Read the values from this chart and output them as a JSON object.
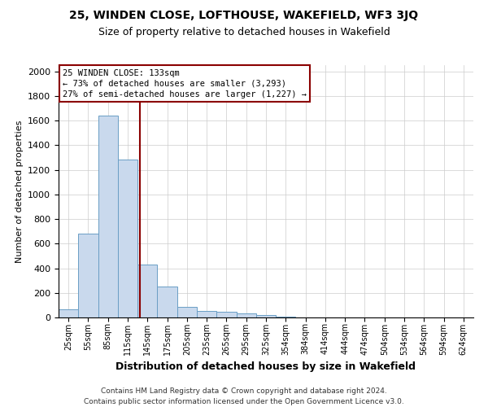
{
  "title1": "25, WINDEN CLOSE, LOFTHOUSE, WAKEFIELD, WF3 3JQ",
  "title2": "Size of property relative to detached houses in Wakefield",
  "xlabel": "Distribution of detached houses by size in Wakefield",
  "ylabel": "Number of detached properties",
  "bar_labels": [
    "25sqm",
    "55sqm",
    "85sqm",
    "115sqm",
    "145sqm",
    "175sqm",
    "205sqm",
    "235sqm",
    "265sqm",
    "295sqm",
    "325sqm",
    "354sqm",
    "384sqm",
    "414sqm",
    "444sqm",
    "474sqm",
    "504sqm",
    "534sqm",
    "564sqm",
    "594sqm",
    "624sqm"
  ],
  "bar_values": [
    65,
    680,
    1640,
    1280,
    430,
    250,
    85,
    55,
    45,
    30,
    20,
    5,
    2,
    1,
    0,
    0,
    0,
    0,
    0,
    0,
    0
  ],
  "bar_color": "#c9d9ed",
  "bar_edge_color": "#6a9ec5",
  "ylim": [
    0,
    2050
  ],
  "yticks": [
    0,
    200,
    400,
    600,
    800,
    1000,
    1200,
    1400,
    1600,
    1800,
    2000
  ],
  "red_line_x": 3.6,
  "annotation_text": "25 WINDEN CLOSE: 133sqm\n← 73% of detached houses are smaller (3,293)\n27% of semi-detached houses are larger (1,227) →",
  "footer1": "Contains HM Land Registry data © Crown copyright and database right 2024.",
  "footer2": "Contains public sector information licensed under the Open Government Licence v3.0.",
  "background_color": "#ffffff",
  "grid_color": "#cccccc",
  "title1_fontsize": 10,
  "title2_fontsize": 9,
  "ylabel_fontsize": 8,
  "xlabel_fontsize": 9,
  "tick_fontsize": 7,
  "annotation_fontsize": 7.5,
  "footer_fontsize": 6.5
}
